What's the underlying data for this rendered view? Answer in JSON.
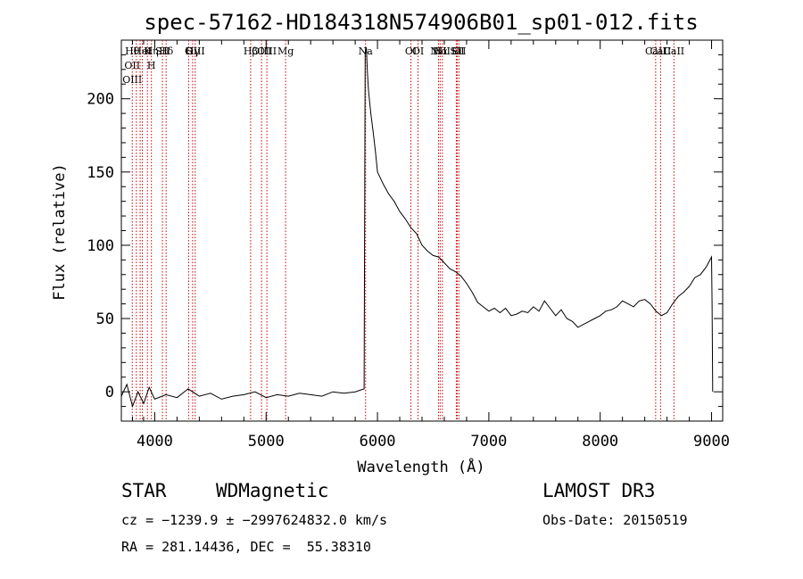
{
  "chart_data": {
    "type": "line",
    "title": "spec-57162-HD184318N574906B01_sp01-012.fits",
    "xlabel": "Wavelength (Å)",
    "ylabel": "Flux (relative)",
    "xlim": [
      3700,
      9100
    ],
    "ylim": [
      -20,
      240
    ],
    "xticks": [
      4000,
      5000,
      6000,
      7000,
      8000,
      9000
    ],
    "yticks": [
      0,
      50,
      100,
      150,
      200
    ],
    "series": [
      {
        "x": [
          3700,
          3750,
          3800,
          3850,
          3900,
          3950,
          4000,
          4100,
          4200,
          4300,
          4400,
          4500,
          4600,
          4700,
          4800,
          4900,
          5000,
          5100,
          5200,
          5300,
          5400,
          5500,
          5600,
          5700,
          5800,
          5880,
          5890,
          5900,
          5910,
          5920,
          5940,
          5960,
          5980,
          6000,
          6050,
          6100,
          6150,
          6200,
          6250,
          6300,
          6350,
          6400,
          6450,
          6500,
          6550,
          6600,
          6650,
          6700,
          6750,
          6800,
          6850,
          6900,
          6950,
          7000,
          7050,
          7100,
          7150,
          7200,
          7250,
          7300,
          7350,
          7400,
          7450,
          7500,
          7550,
          7600,
          7650,
          7700,
          7750,
          7800,
          7850,
          7900,
          7950,
          8000,
          8050,
          8100,
          8150,
          8200,
          8250,
          8300,
          8350,
          8400,
          8450,
          8500,
          8550,
          8600,
          8650,
          8700,
          8750,
          8800,
          8850,
          8900,
          8950,
          9000,
          9005,
          9010
        ],
        "y": [
          -3,
          5,
          -10,
          0,
          -8,
          3,
          -5,
          -2,
          -4,
          2,
          -3,
          -1,
          -5,
          -3,
          -2,
          0,
          -4,
          -2,
          -3,
          -1,
          -2,
          -3,
          0,
          -1,
          0,
          2,
          230,
          235,
          218,
          205,
          190,
          178,
          165,
          150,
          142,
          135,
          130,
          123,
          118,
          112,
          108,
          100,
          96,
          93,
          92,
          88,
          84,
          82,
          79,
          74,
          68,
          61,
          58,
          55,
          57,
          54,
          57,
          52,
          53,
          55,
          54,
          58,
          55,
          62,
          57,
          52,
          56,
          50,
          48,
          44,
          46,
          48,
          50,
          52,
          55,
          56,
          58,
          62,
          60,
          58,
          62,
          63,
          60,
          55,
          52,
          54,
          60,
          65,
          68,
          72,
          78,
          80,
          85,
          92,
          60,
          0
        ]
      }
    ],
    "lines": [
      {
        "w": 3798,
        "labels": [
          "Hθ",
          "OII",
          "OIII"
        ]
      },
      {
        "w": 3835,
        "labels": []
      },
      {
        "w": 3869,
        "labels": []
      },
      {
        "w": 3889,
        "labels": [
          "HeI"
        ]
      },
      {
        "w": 3934,
        "labels": [
          "K"
        ]
      },
      {
        "w": 3970,
        "labels": [
          "Hη",
          "H"
        ]
      },
      {
        "w": 4069,
        "labels": [
          "SII"
        ]
      },
      {
        "w": 4102,
        "labels": [
          "Hδ"
        ]
      },
      {
        "w": 4304,
        "labels": [
          "G"
        ]
      },
      {
        "w": 4340,
        "labels": [
          "Hγ"
        ]
      },
      {
        "w": 4363,
        "labels": [
          "OIII"
        ]
      },
      {
        "w": 4861,
        "labels": [
          "Hβ"
        ]
      },
      {
        "w": 4959,
        "labels": [
          "OIII"
        ]
      },
      {
        "w": 5007,
        "labels": [
          "OIII"
        ]
      },
      {
        "w": 5175,
        "labels": [
          "Mg"
        ]
      },
      {
        "w": 5893,
        "labels": [
          "Na"
        ]
      },
      {
        "w": 6300,
        "labels": [
          "OI"
        ]
      },
      {
        "w": 6364,
        "labels": [
          "OI"
        ]
      },
      {
        "w": 6548,
        "labels": [
          "NII"
        ]
      },
      {
        "w": 6563,
        "labels": [
          "Hα"
        ]
      },
      {
        "w": 6583,
        "labels": [
          "NII"
        ]
      },
      {
        "w": 6708,
        "labels": [
          "Li"
        ]
      },
      {
        "w": 6716,
        "labels": [
          "SII"
        ]
      },
      {
        "w": 6731,
        "labels": [
          "SII"
        ]
      },
      {
        "w": 8498,
        "labels": [
          "CaII"
        ]
      },
      {
        "w": 8542,
        "labels": [
          "CaII"
        ]
      },
      {
        "w": 8662,
        "labels": [
          "CaII"
        ]
      }
    ]
  },
  "info": {
    "class": "STAR",
    "subclass": "WDMagnetic",
    "survey": "LAMOST DR3",
    "cz": "cz = −1239.9 ± −2997624832.0 km/s",
    "obs_date": "Obs-Date: 20150519",
    "coords": "RA = 281.14436, DEC =  55.38310"
  }
}
